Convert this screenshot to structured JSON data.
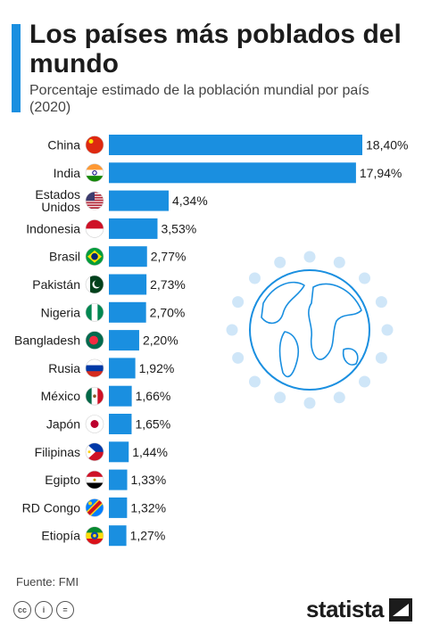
{
  "header": {
    "title": "Los países más poblados del mundo",
    "subtitle": "Porcentaje estimado de la población mundial por país (2020)"
  },
  "footer": {
    "source": "Fuente: FMI",
    "brand": "statista"
  },
  "colors": {
    "bar": "#1a8fe0",
    "globe": "#1a8fe0"
  },
  "chart_data": {
    "type": "bar",
    "orientation": "horizontal",
    "title": "Los países más poblados del mundo",
    "subtitle": "Porcentaje estimado de la población mundial por país (2020)",
    "categories": [
      "China",
      "India",
      "Estados Unidos",
      "Indonesia",
      "Brasil",
      "Pakistán",
      "Nigeria",
      "Bangladesh",
      "Rusia",
      "México",
      "Japón",
      "Filipinas",
      "Egipto",
      "RD Congo",
      "Etiopía"
    ],
    "category_lines": [
      [
        "China"
      ],
      [
        "India"
      ],
      [
        "Estados",
        "Unidos"
      ],
      [
        "Indonesia"
      ],
      [
        "Brasil"
      ],
      [
        "Pakistán"
      ],
      [
        "Nigeria"
      ],
      [
        "Bangladesh"
      ],
      [
        "Rusia"
      ],
      [
        "México"
      ],
      [
        "Japón"
      ],
      [
        "Filipinas"
      ],
      [
        "Egipto"
      ],
      [
        "RD Congo"
      ],
      [
        "Etiopía"
      ]
    ],
    "values": [
      18.4,
      17.94,
      4.34,
      3.53,
      2.77,
      2.73,
      2.7,
      2.2,
      1.92,
      1.66,
      1.65,
      1.44,
      1.33,
      1.32,
      1.27
    ],
    "value_labels": [
      "18,40%",
      "17,94%",
      "4,34%",
      "3,53%",
      "2,77%",
      "2,73%",
      "2,70%",
      "2,20%",
      "1,92%",
      "1,66%",
      "1,65%",
      "1,44%",
      "1,33%",
      "1,32%",
      "1,27%"
    ],
    "flags": [
      "china-flag",
      "india-flag",
      "usa-flag",
      "indonesia-flag",
      "brazil-flag",
      "pakistan-flag",
      "nigeria-flag",
      "bangladesh-flag",
      "russia-flag",
      "mexico-flag",
      "japan-flag",
      "philippines-flag",
      "egypt-flag",
      "drcongo-flag",
      "ethiopia-flag"
    ],
    "xlim": [
      0,
      18.4
    ],
    "grid": false,
    "legend": "none"
  }
}
